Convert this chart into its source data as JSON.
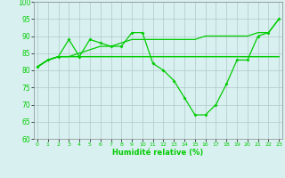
{
  "x": [
    0,
    1,
    2,
    3,
    4,
    5,
    6,
    7,
    8,
    9,
    10,
    11,
    12,
    13,
    14,
    15,
    16,
    17,
    18,
    19,
    20,
    21,
    22,
    23
  ],
  "line_upper": [
    81,
    83,
    84,
    84,
    85,
    86,
    87,
    87,
    88,
    89,
    89,
    89,
    89,
    89,
    89,
    89,
    90,
    90,
    90,
    90,
    90,
    91,
    91,
    95
  ],
  "line_mid1": [
    81,
    83,
    84,
    84,
    84,
    84,
    84,
    84,
    84,
    84,
    84,
    84,
    84,
    84,
    84,
    84,
    84,
    84,
    84,
    84,
    84,
    84,
    84,
    84
  ],
  "line_mid2": [
    81,
    83,
    84,
    84,
    84,
    84,
    84,
    84,
    84,
    84,
    84,
    84,
    84,
    84,
    84,
    84,
    84,
    84,
    84,
    84,
    84,
    84,
    84,
    84
  ],
  "line_marked": [
    81,
    83,
    84,
    89,
    84,
    89,
    88,
    87,
    87,
    91,
    91,
    82,
    80,
    77,
    72,
    67,
    67,
    70,
    76,
    83,
    83,
    90,
    91,
    95
  ],
  "xlim": [
    0,
    23
  ],
  "ylim": [
    60,
    100
  ],
  "yticks": [
    60,
    65,
    70,
    75,
    80,
    85,
    90,
    95,
    100
  ],
  "xticks": [
    0,
    1,
    2,
    3,
    4,
    5,
    6,
    7,
    8,
    9,
    10,
    11,
    12,
    13,
    14,
    15,
    16,
    17,
    18,
    19,
    20,
    21,
    22,
    23
  ],
  "xlabel": "Humidité relative (%)",
  "line_color": "#00cc00",
  "bg_color": "#d8f0f0",
  "grid_color": "#b0c8c8"
}
